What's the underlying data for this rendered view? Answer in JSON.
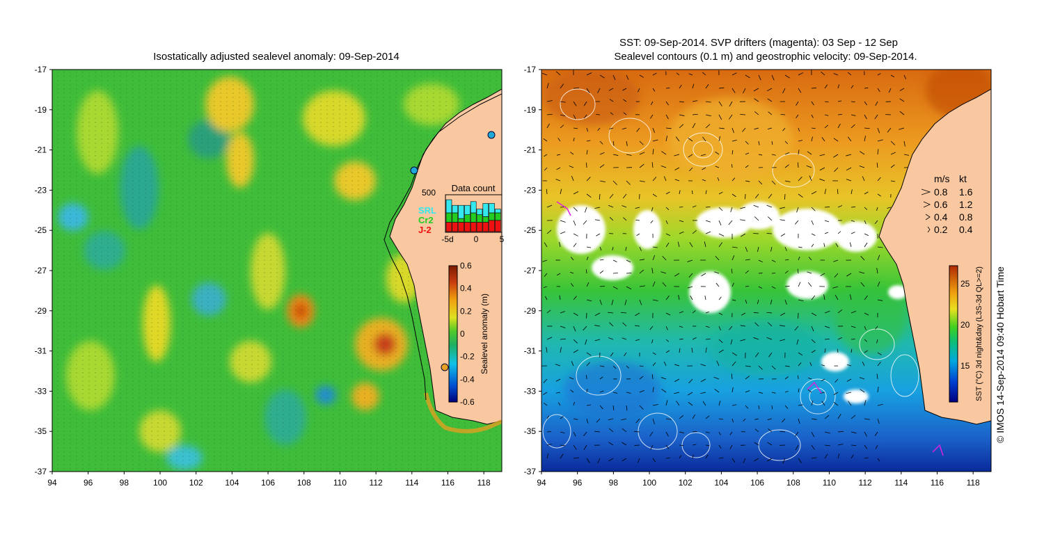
{
  "left_map": {
    "title": "Isostatically adjusted sealevel anomaly: 09-Sep-2014",
    "y_ticks": [
      "-17",
      "-19",
      "-21",
      "-23",
      "-25",
      "-27",
      "-29",
      "-31",
      "-33",
      "-35",
      "-37"
    ],
    "x_ticks": [
      "94",
      "96",
      "98",
      "100",
      "102",
      "104",
      "106",
      "108",
      "110",
      "112",
      "114",
      "116",
      "118"
    ],
    "colorbar": {
      "label": "Sealevel anomaly (m)",
      "ticks": [
        "0.6",
        "0.4",
        "0.2",
        "0",
        "-0.2",
        "-0.4",
        "-0.6"
      ]
    },
    "data_count": {
      "title": "Data count",
      "y_label": "500",
      "x_ticks": [
        "-5d",
        "0",
        "5"
      ],
      "legend": [
        {
          "label": "SRL",
          "color": "#33e8ee"
        },
        {
          "label": "Cr2",
          "color": "#22cc22"
        },
        {
          "label": "J-2",
          "color": "#ee1111"
        }
      ],
      "bars": [
        {
          "srl": 0.35,
          "cr2": 0.25,
          "j2": 0.25
        },
        {
          "srl": 0.2,
          "cr2": 0.25,
          "j2": 0.25
        },
        {
          "srl": 0.35,
          "cr2": 0.1,
          "j2": 0.25
        },
        {
          "srl": 0.25,
          "cr2": 0.2,
          "j2": 0.25
        },
        {
          "srl": 0.3,
          "cr2": 0.25,
          "j2": 0.25
        },
        {
          "srl": 0.15,
          "cr2": 0.2,
          "j2": 0.25
        },
        {
          "srl": 0.35,
          "cr2": 0.15,
          "j2": 0.25
        },
        {
          "srl": 0.25,
          "cr2": 0.2,
          "j2": 0.3
        },
        {
          "srl": 0.1,
          "cr2": 0.2,
          "j2": 0.3
        }
      ]
    }
  },
  "right_map": {
    "title_line1": "SST: 09-Sep-2014. SVP drifters (magenta): 03 Sep - 12 Sep",
    "title_line2": "Sealevel contours (0.1 m) and geostrophic velocity: 09-Sep-2014.",
    "y_ticks": [
      "-17",
      "-19",
      "-21",
      "-23",
      "-25",
      "-27",
      "-29",
      "-31",
      "-33",
      "-35",
      "-37"
    ],
    "x_ticks": [
      "94",
      "96",
      "98",
      "100",
      "102",
      "104",
      "106",
      "108",
      "110",
      "112",
      "114",
      "116",
      "118"
    ],
    "velocity_legend": {
      "header_ms": "m/s",
      "header_kt": "kt",
      "rows": [
        {
          "ms": "0.8",
          "kt": "1.6"
        },
        {
          "ms": "0.6",
          "kt": "1.2"
        },
        {
          "ms": "0.4",
          "kt": "0.8"
        },
        {
          "ms": "0.2",
          "kt": "0.4"
        }
      ]
    },
    "colorbar": {
      "label": "SST (°C) 3d night&day (L3S-3d QL>=2)",
      "ticks": [
        "25",
        "20",
        "15"
      ]
    }
  },
  "credit": "© IMOS 14-Sep-2014 09:40 Hobart Time",
  "colors": {
    "land": "#f9c8a0",
    "sla_base": "#33bb33",
    "sst_warm": "#e8821a",
    "sst_cold": "#1a5fc8"
  }
}
